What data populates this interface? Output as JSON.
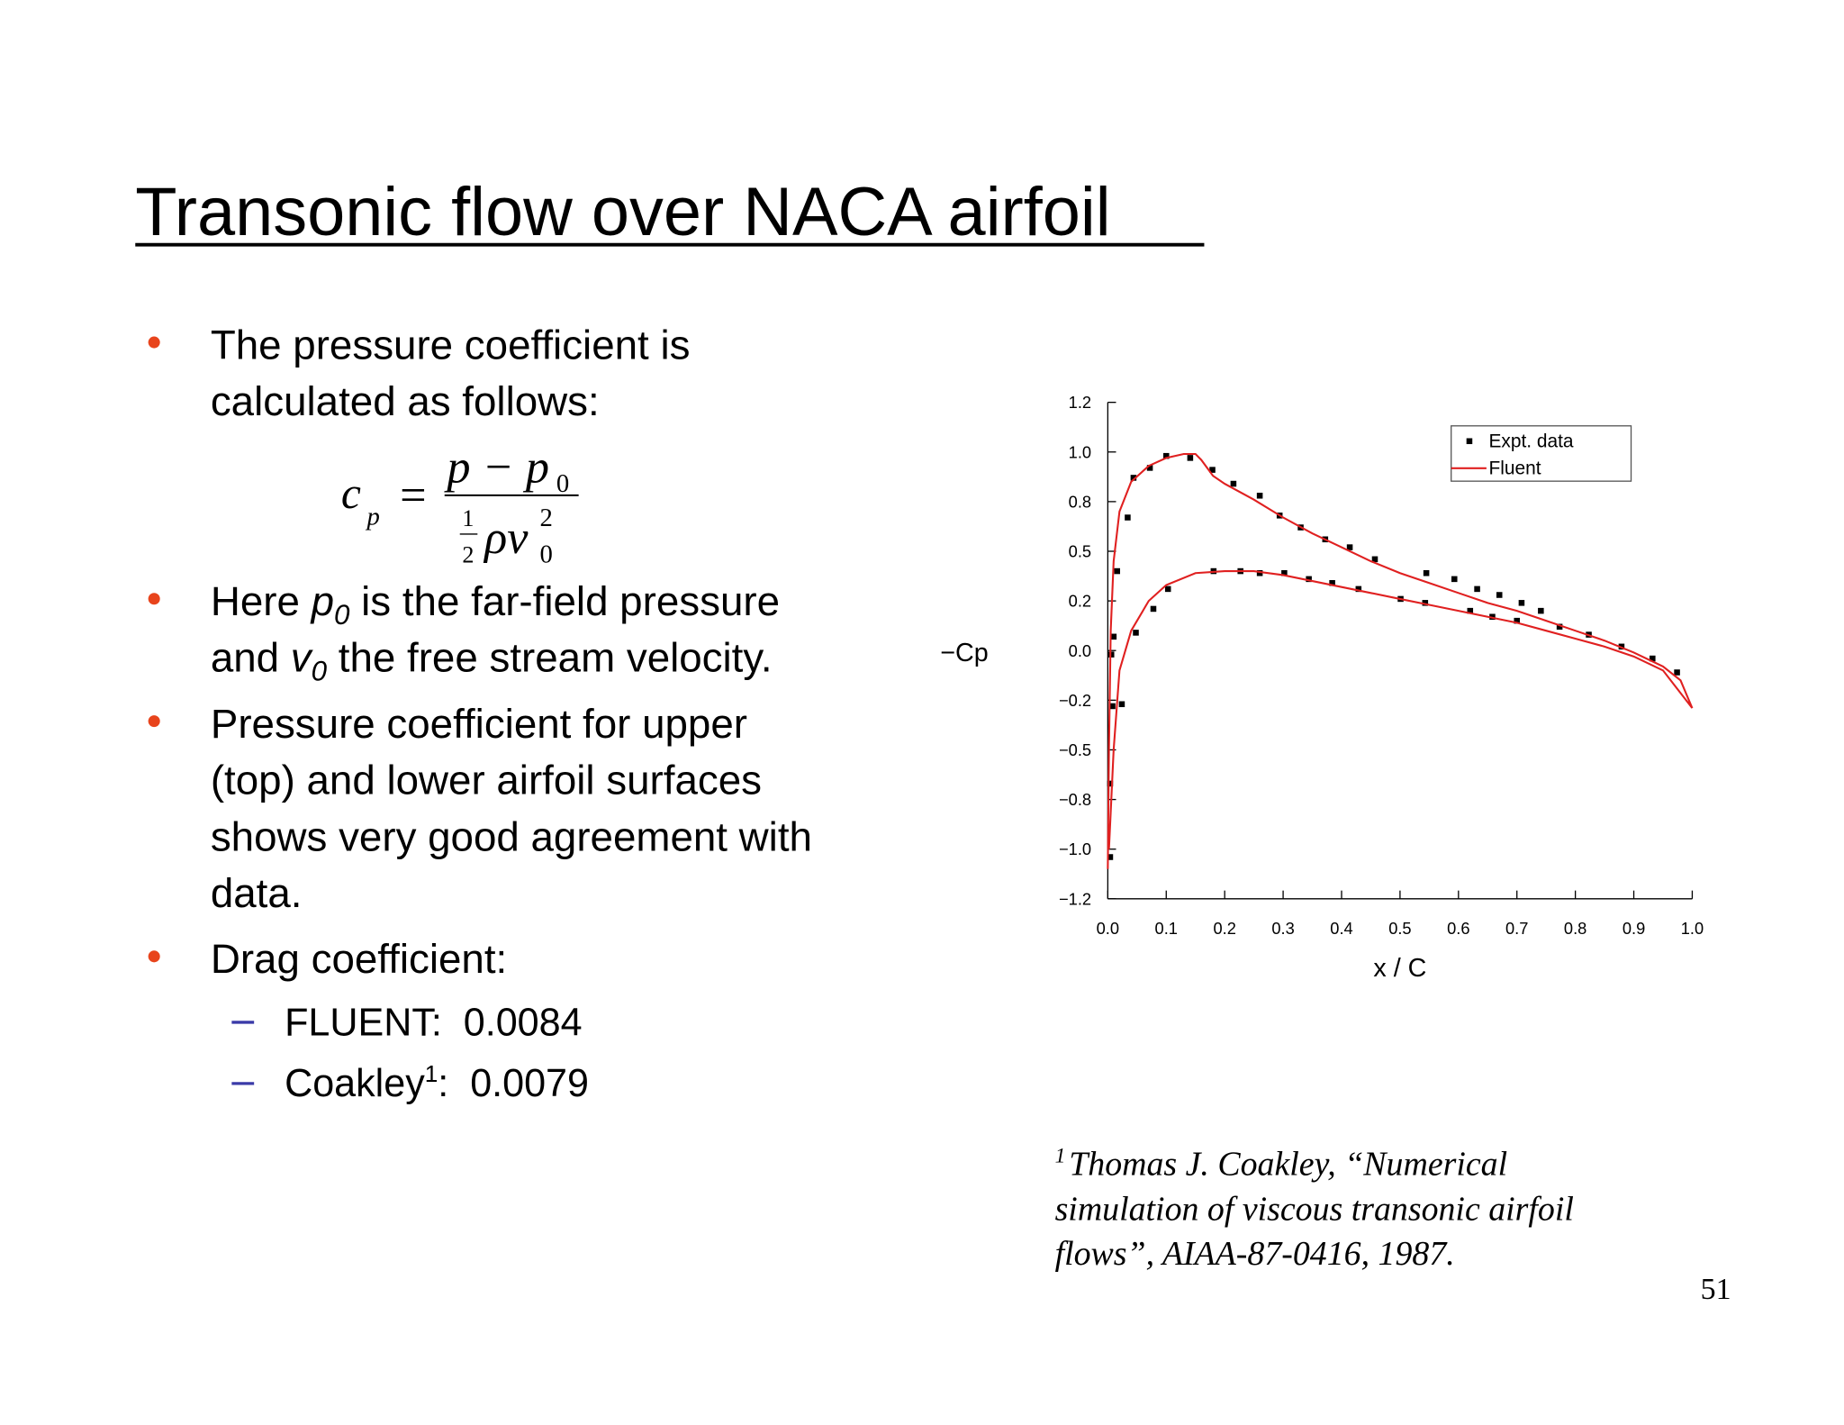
{
  "title": "Transonic flow over NACA airfoil",
  "bullets": [
    {
      "lines": [
        [
          "The pressure coefficient is"
        ],
        [
          "calculated as follows:"
        ]
      ]
    },
    {
      "lines": [
        [
          "Here ",
          "p",
          "0",
          " is the far-field pressure"
        ],
        [
          "and ",
          "v",
          "0",
          " the free stream velocity."
        ]
      ]
    },
    {
      "lines": [
        [
          "Pressure coefficient for upper"
        ],
        [
          "(top) and lower airfoil surfaces"
        ],
        [
          "shows very good agreement with"
        ],
        [
          "data."
        ]
      ]
    },
    {
      "lines": [
        [
          "Drag coefficient:"
        ]
      ]
    }
  ],
  "formula": {
    "lhs": "c",
    "lhs_sub": "p",
    "equals": "=",
    "numerator": "p − p",
    "numerator_sub": "0",
    "half_num": "1",
    "half_den": "2",
    "denominator": "ρv",
    "denominator_sup": "2",
    "denominator_sub": "0"
  },
  "sub_bullets": [
    [
      "FLUENT:  0.0084"
    ],
    [
      "Coakley",
      "1",
      ":  0.0079"
    ]
  ],
  "footnote": {
    "mark": "1",
    "lines": [
      "Thomas J. Coakley, “Numerical",
      "simulation of viscous transonic airfoil",
      "flows”, AIAA-87-0416, 1987."
    ]
  },
  "page_number": "51",
  "chart_data": {
    "type": "line",
    "x_label": "x / C",
    "y_label": "−Cp",
    "xlim": [
      0,
      1
    ],
    "ylim": [
      -1.25,
      1.25
    ],
    "xticks": [
      {
        "value": 0,
        "label": "0.0"
      },
      0.1,
      0.2,
      0.3,
      0.4,
      0.5,
      0.6,
      0.7,
      0.8,
      0.9,
      {
        "value": 1,
        "label": "1.0"
      }
    ],
    "yticks": [
      {
        "value": 1.25,
        "label": "1.2"
      },
      {
        "value": 1,
        "label": "1.0"
      },
      {
        "value": 0.75,
        "label": "0.8"
      },
      0.5,
      {
        "value": 0.25,
        "label": "0.2"
      },
      {
        "value": 0,
        "label": "0.0"
      },
      {
        "value": -0.25,
        "label": "−0.2"
      },
      {
        "value": -0.5,
        "label": "−0.5"
      },
      {
        "value": -0.75,
        "label": "−0.8"
      },
      {
        "value": -1,
        "label": "−1.0"
      },
      {
        "value": -1.25,
        "label": "−1.2"
      }
    ],
    "legend": "upper right",
    "series": [
      {
        "name": "Expt. data",
        "kind": "scatter",
        "color": "#000000",
        "x": [
          0.004,
          0.004,
          0.008,
          0.024,
          0.01,
          0.006,
          0.016,
          0.034,
          0.044,
          0.072,
          0.1,
          0.141,
          0.179,
          0.215,
          0.26,
          0.294,
          0.33,
          0.372,
          0.414,
          0.457,
          0.545,
          0.593,
          0.632,
          0.67,
          0.708,
          0.741,
          0.773,
          0.823,
          0.879,
          0.932,
          0.974,
          0.048,
          0.078,
          0.103,
          0.181,
          0.227,
          0.26,
          0.302,
          0.344,
          0.384,
          0.429,
          0.501,
          0.543,
          0.62,
          0.658,
          0.7
        ],
        "values": [
          -1.04,
          -0.67,
          -0.28,
          -0.27,
          0.07,
          -0.02,
          0.4,
          0.67,
          0.87,
          0.92,
          0.98,
          0.97,
          0.91,
          0.84,
          0.78,
          0.68,
          0.62,
          0.56,
          0.52,
          0.46,
          0.39,
          0.36,
          0.31,
          0.28,
          0.24,
          0.2,
          0.12,
          0.08,
          0.02,
          -0.04,
          -0.11,
          0.09,
          0.21,
          0.31,
          0.4,
          0.4,
          0.39,
          0.39,
          0.36,
          0.34,
          0.31,
          0.26,
          0.24,
          0.2,
          0.17,
          0.15
        ]
      },
      {
        "name": "Fluent",
        "kind": "line",
        "color": "#e02020",
        "x": [
          0,
          0.002,
          0.005,
          0.01,
          0.02,
          0.04,
          0.07,
          0.1,
          0.13,
          0.15,
          0.16,
          0.18,
          0.2,
          0.25,
          0.3,
          0.35,
          0.4,
          0.45,
          0.5,
          0.55,
          0.6,
          0.65,
          0.7,
          0.75,
          0.8,
          0.85,
          0.9,
          0.95,
          0.98,
          1,
          null,
          0.002,
          0.01,
          0.02,
          0.04,
          0.07,
          0.1,
          0.15,
          0.2,
          0.25,
          0.3,
          0.35,
          0.4,
          0.45,
          0.5,
          0.55,
          0.6,
          0.65,
          0.7,
          0.75,
          0.8,
          0.85,
          0.9,
          0.95,
          1
        ],
        "values": [
          -1.1,
          -0.5,
          0.1,
          0.45,
          0.7,
          0.85,
          0.93,
          0.97,
          0.99,
          0.99,
          0.96,
          0.88,
          0.84,
          0.76,
          0.67,
          0.59,
          0.52,
          0.45,
          0.39,
          0.34,
          0.29,
          0.24,
          0.2,
          0.15,
          0.1,
          0.05,
          -0.01,
          -0.08,
          -0.15,
          -0.29,
          null,
          -1,
          -0.5,
          -0.1,
          0.1,
          0.25,
          0.33,
          0.39,
          0.4,
          0.4,
          0.38,
          0.35,
          0.32,
          0.29,
          0.26,
          0.23,
          0.2,
          0.17,
          0.14,
          0.1,
          0.06,
          0.02,
          -0.03,
          -0.1,
          -0.29
        ]
      }
    ]
  }
}
